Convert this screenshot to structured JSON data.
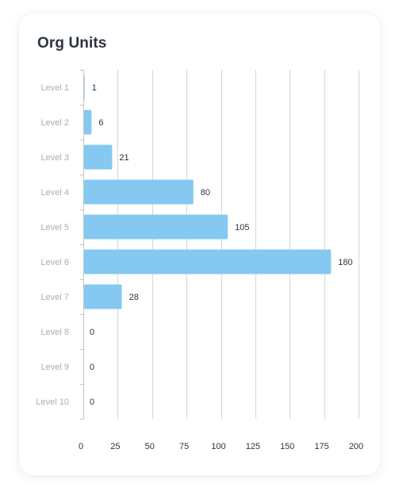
{
  "card": {
    "title": "Org Units"
  },
  "colors": {
    "bar": "#85c8f1",
    "grid": "#d6d6d6",
    "axis": "#c4c4c4"
  },
  "chart_data": {
    "type": "bar",
    "orientation": "horizontal",
    "title": "Org Units",
    "categories": [
      "Level 1",
      "Level 2",
      "Level 3",
      "Level 4",
      "Level 5",
      "Level 6",
      "Level 7",
      "Level 8",
      "Level 9",
      "Level 10"
    ],
    "values": [
      1,
      6,
      21,
      80,
      105,
      180,
      28,
      0,
      0,
      0
    ],
    "x_ticks": [
      0,
      25,
      50,
      75,
      100,
      125,
      150,
      175,
      200
    ],
    "xlim": [
      0,
      200
    ],
    "xlabel": "",
    "ylabel": "",
    "grid": true,
    "data_labels": true
  }
}
